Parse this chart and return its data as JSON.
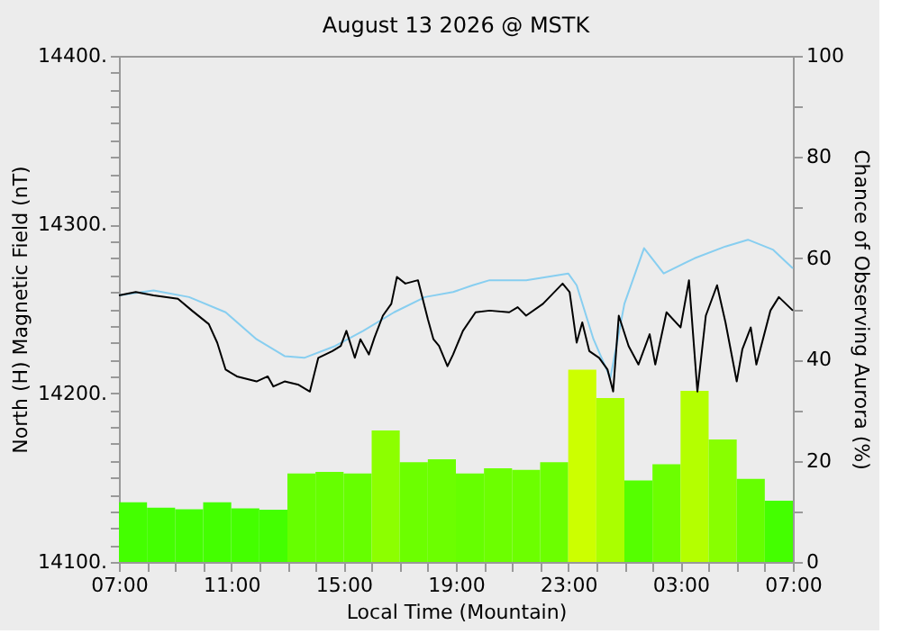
{
  "chart_data": {
    "type": "line",
    "title": "August 13 2026 @ MSTK",
    "xlabel": "Local Time (Mountain)",
    "ylabel": "North (H) Magnetic Field (nT)",
    "y2label": "Chance of Observing Aurora (%)",
    "xlim": [
      "2026-08-13T07:00",
      "2026-08-14T07:00"
    ],
    "xticks": [
      {
        "value": "2026-08-13T07:00",
        "label": "07:00"
      },
      {
        "value": "2026-08-13T08:00",
        "label": null
      },
      {
        "value": "2026-08-13T09:00",
        "label": null
      },
      {
        "value": "2026-08-13T10:00",
        "label": null
      },
      {
        "value": "2026-08-13T11:00",
        "label": "11:00"
      },
      {
        "value": "2026-08-13T12:00",
        "label": null
      },
      {
        "value": "2026-08-13T13:00",
        "label": null
      },
      {
        "value": "2026-08-13T14:00",
        "label": null
      },
      {
        "value": "2026-08-13T15:00",
        "label": "15:00"
      },
      {
        "value": "2026-08-13T16:00",
        "label": null
      },
      {
        "value": "2026-08-13T17:00",
        "label": null
      },
      {
        "value": "2026-08-13T18:00",
        "label": null
      },
      {
        "value": "2026-08-13T19:00",
        "label": "19:00"
      },
      {
        "value": "2026-08-13T20:00",
        "label": null
      },
      {
        "value": "2026-08-13T21:00",
        "label": null
      },
      {
        "value": "2026-08-13T22:00",
        "label": null
      },
      {
        "value": "2026-08-13T23:00",
        "label": "23:00"
      },
      {
        "value": "2026-08-14T00:00",
        "label": null
      },
      {
        "value": "2026-08-14T01:00",
        "label": null
      },
      {
        "value": "2026-08-14T02:00",
        "label": null
      },
      {
        "value": "2026-08-14T03:00",
        "label": "03:00"
      },
      {
        "value": "2026-08-14T04:00",
        "label": null
      },
      {
        "value": "2026-08-14T05:00",
        "label": null
      },
      {
        "value": "2026-08-14T06:00",
        "label": null
      },
      {
        "value": "2026-08-14T07:00",
        "label": "07:00"
      }
    ],
    "ylim": [
      14100,
      14400
    ],
    "yticks": [
      {
        "value": 14100,
        "label": "14100."
      },
      {
        "value": 14110,
        "label": null
      },
      {
        "value": 14120,
        "label": null
      },
      {
        "value": 14130,
        "label": null
      },
      {
        "value": 14140,
        "label": null
      },
      {
        "value": 14150,
        "label": null
      },
      {
        "value": 14160,
        "label": null
      },
      {
        "value": 14170,
        "label": null
      },
      {
        "value": 14180,
        "label": null
      },
      {
        "value": 14190,
        "label": null
      },
      {
        "value": 14200,
        "label": "14200."
      },
      {
        "value": 14210,
        "label": null
      },
      {
        "value": 14220,
        "label": null
      },
      {
        "value": 14230,
        "label": null
      },
      {
        "value": 14240,
        "label": null
      },
      {
        "value": 14250,
        "label": null
      },
      {
        "value": 14260,
        "label": null
      },
      {
        "value": 14270,
        "label": null
      },
      {
        "value": 14280,
        "label": null
      },
      {
        "value": 14290,
        "label": null
      },
      {
        "value": 14300,
        "label": "14300."
      },
      {
        "value": 14310,
        "label": null
      },
      {
        "value": 14320,
        "label": null
      },
      {
        "value": 14330,
        "label": null
      },
      {
        "value": 14340,
        "label": null
      },
      {
        "value": 14350,
        "label": null
      },
      {
        "value": 14360,
        "label": null
      },
      {
        "value": 14370,
        "label": null
      },
      {
        "value": 14380,
        "label": null
      },
      {
        "value": 14390,
        "label": null
      },
      {
        "value": 14400,
        "label": "14400."
      }
    ],
    "y2lim": [
      0,
      100
    ],
    "y2ticks": [
      {
        "value": 0,
        "label": "0"
      },
      {
        "value": 10,
        "label": null
      },
      {
        "value": 20,
        "label": "20"
      },
      {
        "value": 30,
        "label": null
      },
      {
        "value": 40,
        "label": "40"
      },
      {
        "value": 50,
        "label": null
      },
      {
        "value": 60,
        "label": "60"
      },
      {
        "value": 70,
        "label": null
      },
      {
        "value": 80,
        "label": "80"
      },
      {
        "value": 90,
        "label": null
      },
      {
        "value": 100,
        "label": "100"
      }
    ],
    "legend": false,
    "grid": false,
    "series": [
      {
        "type": "bar",
        "axis": "y2",
        "x": [
          "2026-08-13T07:30",
          "2026-08-13T08:30",
          "2026-08-13T09:30",
          "2026-08-13T10:30",
          "2026-08-13T11:30",
          "2026-08-13T12:30",
          "2026-08-13T13:30",
          "2026-08-13T14:30",
          "2026-08-13T15:30",
          "2026-08-13T16:30",
          "2026-08-13T17:30",
          "2026-08-13T18:30",
          "2026-08-13T19:30",
          "2026-08-13T20:30",
          "2026-08-13T21:30",
          "2026-08-13T22:30",
          "2026-08-13T23:30",
          "2026-08-14T00:30",
          "2026-08-14T01:30",
          "2026-08-14T02:30",
          "2026-08-14T03:30",
          "2026-08-14T04:30",
          "2026-08-14T05:30",
          "2026-08-14T06:30"
        ],
        "values": [
          11.8,
          10.7,
          10.4,
          11.8,
          10.6,
          10.3,
          17.5,
          17.8,
          17.5,
          26,
          19.7,
          20.3,
          17.5,
          18.5,
          18.2,
          19.7,
          38,
          32.4,
          16.1,
          19.3,
          33.8,
          24.2,
          16.4,
          12.1
        ],
        "colors": [
          "#44ff00",
          "#44ff00",
          "#44ff00",
          "#44ff00",
          "#44ff00",
          "#44ff00",
          "#66ff00",
          "#66ff00",
          "#66ff00",
          "#8cff00",
          "#6cff00",
          "#6cff00",
          "#66ff00",
          "#6cff00",
          "#6cff00",
          "#6cff00",
          "#ccff00",
          "#aaff00",
          "#55ff00",
          "#6cff00",
          "#b4ff00",
          "#88ff00",
          "#66ff00",
          "#44ff00"
        ]
      },
      {
        "color": "#000000",
        "x": [
          "2026-08-13T07:00",
          "2026-08-13T07:36",
          "2026-08-13T08:14",
          "2026-08-13T09:06",
          "2026-08-13T09:36",
          "2026-08-13T10:12",
          "2026-08-13T10:30",
          "2026-08-13T10:48",
          "2026-08-13T11:12",
          "2026-08-13T11:54",
          "2026-08-13T12:18",
          "2026-08-13T12:30",
          "2026-08-13T12:54",
          "2026-08-13T13:24",
          "2026-08-13T13:48",
          "2026-08-13T14:06",
          "2026-08-13T14:36",
          "2026-08-13T14:54",
          "2026-08-13T15:06",
          "2026-08-13T15:24",
          "2026-08-13T15:36",
          "2026-08-13T15:54",
          "2026-08-13T16:06",
          "2026-08-13T16:24",
          "2026-08-13T16:42",
          "2026-08-13T16:54",
          "2026-08-13T17:12",
          "2026-08-13T17:39",
          "2026-08-13T18:00",
          "2026-08-13T18:12",
          "2026-08-13T18:24",
          "2026-08-13T18:42",
          "2026-08-13T18:54",
          "2026-08-13T19:15",
          "2026-08-13T19:42",
          "2026-08-13T20:12",
          "2026-08-13T20:54",
          "2026-08-13T21:12",
          "2026-08-13T21:30",
          "2026-08-13T22:06",
          "2026-08-13T22:48",
          "2026-08-13T23:03",
          "2026-08-13T23:18",
          "2026-08-13T23:30",
          "2026-08-13T23:45",
          "2026-08-14T00:06",
          "2026-08-14T00:24",
          "2026-08-14T00:36",
          "2026-08-14T00:48",
          "2026-08-14T01:09",
          "2026-08-14T01:30",
          "2026-08-14T01:54",
          "2026-08-14T02:06",
          "2026-08-14T02:30",
          "2026-08-14T03:00",
          "2026-08-14T03:18",
          "2026-08-14T03:36",
          "2026-08-14T03:54",
          "2026-08-14T04:18",
          "2026-08-14T04:36",
          "2026-08-14T05:00",
          "2026-08-14T05:12",
          "2026-08-14T05:30",
          "2026-08-14T05:42",
          "2026-08-14T06:12",
          "2026-08-14T06:30",
          "2026-08-14T07:00"
        ],
        "values": [
          14258,
          14260,
          14258,
          14256,
          14249,
          14241,
          14230,
          14214,
          14210,
          14207,
          14210,
          14204,
          14207,
          14205,
          14201,
          14221,
          14225,
          14228,
          14237,
          14221,
          14232,
          14223,
          14233,
          14246,
          14253,
          14269,
          14265,
          14267,
          14244,
          14232,
          14228,
          14216,
          14223,
          14237,
          14248,
          14249,
          14248,
          14251,
          14246,
          14253,
          14265,
          14260,
          14230,
          14242,
          14225,
          14221,
          14214,
          14201,
          14246,
          14228,
          14217,
          14235,
          14217,
          14248,
          14239,
          14267,
          14201,
          14246,
          14264,
          14242,
          14207,
          14226,
          14239,
          14217,
          14249,
          14257,
          14249
        ]
      },
      {
        "color": "#87cef0",
        "x": [
          "2026-08-13T07:00",
          "2026-08-13T08:14",
          "2026-08-13T09:30",
          "2026-08-13T10:48",
          "2026-08-13T11:54",
          "2026-08-13T12:54",
          "2026-08-13T13:36",
          "2026-08-13T14:42",
          "2026-08-13T15:42",
          "2026-08-13T16:48",
          "2026-08-13T17:54",
          "2026-08-13T18:54",
          "2026-08-13T19:36",
          "2026-08-13T20:12",
          "2026-08-13T21:30",
          "2026-08-13T23:00",
          "2026-08-13T23:18",
          "2026-08-13T23:54",
          "2026-08-14T00:30",
          "2026-08-14T01:00",
          "2026-08-14T01:42",
          "2026-08-14T02:24",
          "2026-08-14T03:30",
          "2026-08-14T04:36",
          "2026-08-14T05:24",
          "2026-08-14T06:18",
          "2026-08-14T07:00"
        ],
        "values": [
          14258,
          14261,
          14257,
          14248,
          14232,
          14222,
          14221,
          14228,
          14237,
          14248,
          14257,
          14260,
          14264,
          14267,
          14267,
          14271,
          14264,
          14232,
          14209,
          14253,
          14286,
          14271,
          14280,
          14287,
          14291,
          14285,
          14274
        ]
      }
    ]
  }
}
